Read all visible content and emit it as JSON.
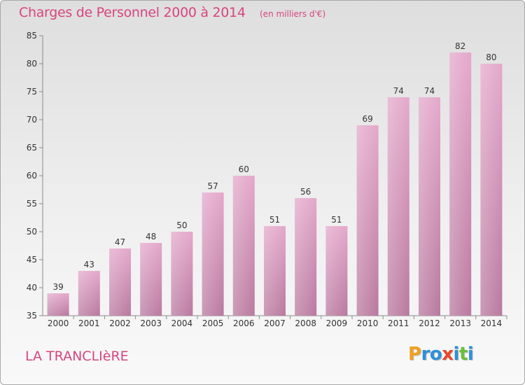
{
  "chart_data": {
    "type": "bar",
    "title": "Charges de Personnel 2000 à 2014",
    "subtitle": "(en milliers d'€)",
    "categories": [
      "2000",
      "2001",
      "2002",
      "2003",
      "2004",
      "2005",
      "2006",
      "2007",
      "2008",
      "2009",
      "2010",
      "2011",
      "2012",
      "2013",
      "2014"
    ],
    "values": [
      39,
      43,
      47,
      48,
      50,
      57,
      60,
      51,
      56,
      51,
      69,
      74,
      74,
      82,
      80
    ],
    "ylim": [
      35,
      85
    ],
    "yticks": [
      35,
      40,
      45,
      50,
      55,
      60,
      65,
      70,
      75,
      80,
      85
    ],
    "xlabel": "",
    "ylabel": "",
    "grid": false,
    "legend": "none"
  },
  "footer": {
    "place_name": "LA TRANCLIèRE",
    "logo_text": "Proxiti"
  },
  "colors": {
    "accent": "#d8457d",
    "bar_top": "#e4a8cb",
    "bar_bottom": "#b9799f"
  }
}
